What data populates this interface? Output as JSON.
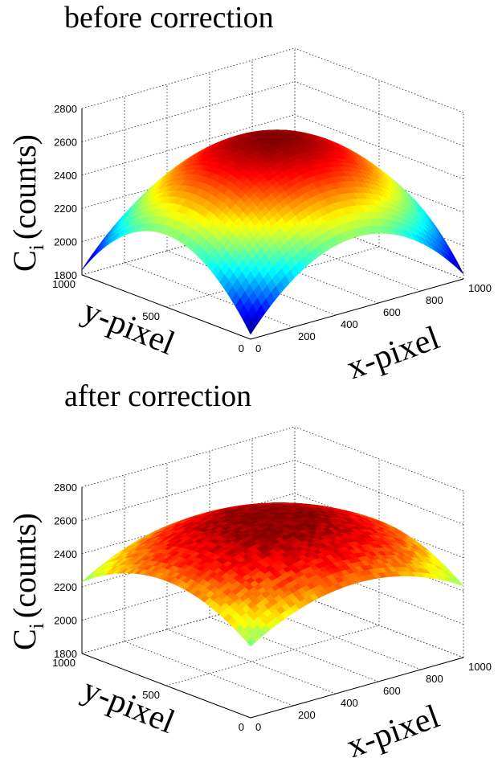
{
  "chart_data": [
    {
      "type": "surface",
      "title": "before correction",
      "xlabel": "x-pixel",
      "ylabel": "y-pixel",
      "zlabel_main": "C",
      "zlabel_sub": "i",
      "zlabel_rest": "(counts)",
      "x_ticks": [
        "0",
        "200",
        "400",
        "600",
        "800",
        "1000"
      ],
      "y_ticks": [
        "0",
        "500",
        "1000"
      ],
      "z_ticks": [
        "1800",
        "2000",
        "2200",
        "2400",
        "2600",
        "2800"
      ],
      "xlim": [
        0,
        1000
      ],
      "ylim": [
        0,
        1000
      ],
      "zlim": [
        1800,
        2800
      ],
      "grid": true,
      "colormap": "jet",
      "surface": {
        "peak": 2640,
        "corner": 1830,
        "noise": 6
      }
    },
    {
      "type": "surface",
      "title": "after correction",
      "xlabel": "x-pixel",
      "ylabel": "y-pixel",
      "zlabel_main": "C",
      "zlabel_sub": "i",
      "zlabel_rest": "(counts)",
      "x_ticks": [
        "0",
        "200",
        "400",
        "600",
        "800",
        "1000"
      ],
      "y_ticks": [
        "0",
        "500",
        "1000"
      ],
      "z_ticks": [
        "1800",
        "2000",
        "2200",
        "2400",
        "2600",
        "2800"
      ],
      "xlim": [
        0,
        1000
      ],
      "ylim": [
        0,
        1000
      ],
      "zlim": [
        1800,
        2800
      ],
      "grid": true,
      "colormap": "jet",
      "surface": {
        "peak": 2630,
        "corner": 2230,
        "noise": 30
      }
    }
  ]
}
